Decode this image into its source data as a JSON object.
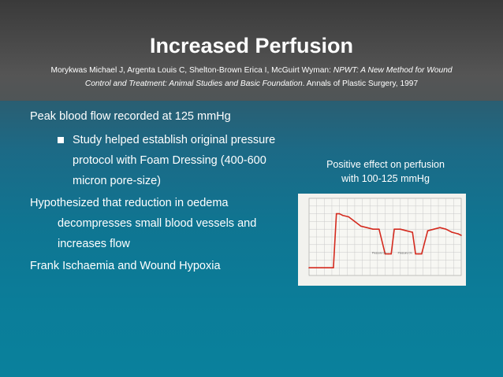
{
  "slide": {
    "title": "Increased Perfusion",
    "citation": {
      "authors": "Morykwas Michael J, Argenta Louis C, Shelton-Brown Erica I, McGuirt Wyman:",
      "paper_title_part1": "NPWT: A New Method for Wound",
      "paper_title_part2": "Control and Treatment: Animal Studies and Basic Foundation",
      "journal": ". Annals of Plastic Surgery, 1997"
    },
    "points": [
      "Peak blood flow recorded at 125 mmHg",
      "Study helped establish original pressure",
      "protocol with Foam Dressing (400-600",
      "micron pore-size)",
      "Hypothesized that reduction in oedema",
      "decompresses small blood vessels and",
      "increases flow",
      "Frank Ischaemia and Wound Hypoxia"
    ],
    "caption": [
      "Positive effect on perfusion",
      "with 100-125 mmHg"
    ],
    "chart_label": "Pressure On"
  },
  "chart_data": {
    "type": "line",
    "series": [
      {
        "x": [
          0,
          4,
          8,
          12,
          16,
          18,
          20,
          22,
          26,
          30,
          34,
          38,
          42,
          46,
          50,
          52,
          54,
          56,
          60,
          64,
          68,
          70,
          72,
          74,
          78,
          82,
          86,
          90,
          94,
          98,
          100
        ],
        "values": [
          10,
          10,
          10,
          10,
          10,
          80,
          80,
          78,
          76,
          70,
          64,
          62,
          60,
          60,
          28,
          28,
          28,
          60,
          60,
          58,
          56,
          28,
          28,
          28,
          58,
          60,
          62,
          60,
          56,
          54,
          52
        ]
      }
    ],
    "xlim": [
      0,
      100
    ],
    "ylim": [
      0,
      100
    ],
    "grid": true
  }
}
